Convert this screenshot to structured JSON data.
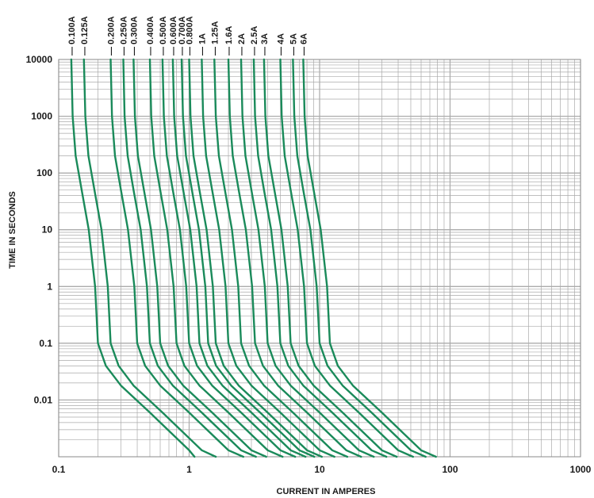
{
  "colors": {
    "curve": "#1a8a5a",
    "grid": "#aaaaaa",
    "text": "#1a1a1a"
  },
  "chart_data": {
    "type": "line",
    "title": "",
    "xlabel": "CURRENT IN AMPERES",
    "ylabel": "TIME IN SECONDS",
    "xscale": "log",
    "yscale": "log",
    "xlim": [
      0.1,
      1000
    ],
    "ylim": [
      0.001,
      10000
    ],
    "grid": true,
    "x_ticks": [
      "0.1",
      "1",
      "10",
      "100",
      "1000"
    ],
    "y_ticks": [
      "0.01",
      "0.1",
      "1",
      "10",
      "100",
      "1000",
      "10000"
    ],
    "series": [
      {
        "name": "0.100A",
        "x": [
          0.125,
          0.128,
          0.135,
          0.15,
          0.17,
          0.19,
          0.2,
          0.23,
          0.3,
          0.5,
          1.0,
          1.1
        ],
        "y": [
          10000,
          1000,
          200,
          50,
          10,
          1,
          0.1,
          0.04,
          0.018,
          0.006,
          0.0013,
          0.001
        ]
      },
      {
        "name": "0.125A",
        "x": [
          0.156,
          0.16,
          0.169,
          0.188,
          0.213,
          0.238,
          0.25,
          0.288,
          0.375,
          0.625,
          1.25,
          1.6
        ],
        "y": [
          10000,
          1000,
          200,
          50,
          10,
          1,
          0.1,
          0.04,
          0.018,
          0.006,
          0.0013,
          0.001
        ]
      },
      {
        "name": "0.200A",
        "x": [
          0.25,
          0.256,
          0.27,
          0.3,
          0.34,
          0.38,
          0.4,
          0.46,
          0.6,
          1.0,
          2.0,
          2.6
        ],
        "y": [
          10000,
          1000,
          200,
          50,
          10,
          1,
          0.1,
          0.04,
          0.018,
          0.006,
          0.0013,
          0.001
        ]
      },
      {
        "name": "0.250A",
        "x": [
          0.313,
          0.32,
          0.338,
          0.375,
          0.425,
          0.475,
          0.5,
          0.575,
          0.75,
          1.25,
          2.5,
          3.25
        ],
        "y": [
          10000,
          1000,
          200,
          50,
          10,
          1,
          0.1,
          0.04,
          0.018,
          0.006,
          0.0013,
          0.001
        ]
      },
      {
        "name": "0.300A",
        "x": [
          0.375,
          0.384,
          0.405,
          0.45,
          0.51,
          0.57,
          0.6,
          0.69,
          0.9,
          1.5,
          3.0,
          3.9
        ],
        "y": [
          10000,
          1000,
          200,
          50,
          10,
          1,
          0.1,
          0.04,
          0.018,
          0.006,
          0.0013,
          0.001
        ]
      },
      {
        "name": "0.400A",
        "x": [
          0.5,
          0.512,
          0.54,
          0.6,
          0.68,
          0.76,
          0.8,
          0.92,
          1.2,
          2.0,
          4.0,
          5.2
        ],
        "y": [
          10000,
          1000,
          200,
          50,
          10,
          1,
          0.1,
          0.04,
          0.018,
          0.006,
          0.0013,
          0.001
        ]
      },
      {
        "name": "0.500A",
        "x": [
          0.625,
          0.64,
          0.675,
          0.75,
          0.85,
          0.95,
          1.0,
          1.15,
          1.5,
          2.5,
          5.0,
          6.5
        ],
        "y": [
          10000,
          1000,
          200,
          50,
          10,
          1,
          0.1,
          0.04,
          0.018,
          0.006,
          0.0013,
          0.001
        ]
      },
      {
        "name": "0.600A",
        "x": [
          0.75,
          0.768,
          0.81,
          0.9,
          1.02,
          1.14,
          1.2,
          1.38,
          1.8,
          3.0,
          6.0,
          7.8
        ],
        "y": [
          10000,
          1000,
          200,
          50,
          10,
          1,
          0.1,
          0.04,
          0.018,
          0.006,
          0.0013,
          0.001
        ]
      },
      {
        "name": "0.700A",
        "x": [
          0.875,
          0.896,
          0.945,
          1.05,
          1.19,
          1.33,
          1.4,
          1.61,
          2.1,
          3.5,
          7.0,
          9.1
        ],
        "y": [
          10000,
          1000,
          200,
          50,
          10,
          1,
          0.1,
          0.04,
          0.018,
          0.006,
          0.0013,
          0.001
        ]
      },
      {
        "name": "0.800A",
        "x": [
          1.0,
          1.024,
          1.08,
          1.2,
          1.36,
          1.52,
          1.6,
          1.84,
          2.4,
          4.0,
          8.0,
          10.4
        ],
        "y": [
          10000,
          1000,
          200,
          50,
          10,
          1,
          0.1,
          0.04,
          0.018,
          0.006,
          0.0013,
          0.001
        ]
      },
      {
        "name": "1A",
        "x": [
          1.25,
          1.28,
          1.35,
          1.5,
          1.7,
          1.9,
          2.0,
          2.3,
          3.0,
          5.0,
          10.0,
          13.0
        ],
        "y": [
          10000,
          1000,
          200,
          50,
          10,
          1,
          0.1,
          0.04,
          0.018,
          0.006,
          0.0013,
          0.001
        ]
      },
      {
        "name": "1.25A",
        "x": [
          1.56,
          1.6,
          1.69,
          1.88,
          2.13,
          2.38,
          2.5,
          2.88,
          3.75,
          6.25,
          12.5,
          16.3
        ],
        "y": [
          10000,
          1000,
          200,
          50,
          10,
          1,
          0.1,
          0.04,
          0.018,
          0.006,
          0.0013,
          0.001
        ]
      },
      {
        "name": "1.6A",
        "x": [
          2.0,
          2.05,
          2.16,
          2.4,
          2.72,
          3.04,
          3.2,
          3.68,
          4.8,
          8.0,
          16.0,
          20.8
        ],
        "y": [
          10000,
          1000,
          200,
          50,
          10,
          1,
          0.1,
          0.04,
          0.018,
          0.006,
          0.0013,
          0.001
        ]
      },
      {
        "name": "2A",
        "x": [
          2.5,
          2.56,
          2.7,
          3.0,
          3.4,
          3.8,
          4.0,
          4.6,
          6.0,
          10.0,
          20.0,
          26.0
        ],
        "y": [
          10000,
          1000,
          200,
          50,
          10,
          1,
          0.1,
          0.04,
          0.018,
          0.006,
          0.0013,
          0.001
        ]
      },
      {
        "name": "2.5A",
        "x": [
          3.13,
          3.2,
          3.38,
          3.75,
          4.25,
          4.75,
          5.0,
          5.75,
          7.5,
          12.5,
          25.0,
          32.5
        ],
        "y": [
          10000,
          1000,
          200,
          50,
          10,
          1,
          0.1,
          0.04,
          0.018,
          0.006,
          0.0013,
          0.001
        ]
      },
      {
        "name": "3A",
        "x": [
          3.75,
          3.84,
          4.05,
          4.5,
          5.1,
          5.7,
          6.0,
          6.9,
          9.0,
          15.0,
          30.0,
          39.0
        ],
        "y": [
          10000,
          1000,
          200,
          50,
          10,
          1,
          0.1,
          0.04,
          0.018,
          0.006,
          0.0013,
          0.001
        ]
      },
      {
        "name": "4A",
        "x": [
          5.0,
          5.12,
          5.4,
          6.0,
          6.8,
          7.6,
          8.0,
          9.2,
          12.0,
          20.0,
          40.0,
          52.0
        ],
        "y": [
          10000,
          1000,
          200,
          50,
          10,
          1,
          0.1,
          0.04,
          0.018,
          0.006,
          0.0013,
          0.001
        ]
      },
      {
        "name": "5A",
        "x": [
          6.25,
          6.4,
          6.75,
          7.5,
          8.5,
          9.5,
          10.0,
          11.5,
          15.0,
          25.0,
          50.0,
          65.0
        ],
        "y": [
          10000,
          1000,
          200,
          50,
          10,
          1,
          0.1,
          0.04,
          0.018,
          0.006,
          0.0013,
          0.001
        ]
      },
      {
        "name": "6A",
        "x": [
          7.5,
          7.68,
          8.1,
          9.0,
          10.2,
          11.4,
          12.0,
          13.8,
          18.0,
          30.0,
          60.0,
          78.0
        ],
        "y": [
          10000,
          1000,
          200,
          50,
          10,
          1,
          0.1,
          0.04,
          0.018,
          0.006,
          0.0013,
          0.001
        ]
      }
    ]
  }
}
